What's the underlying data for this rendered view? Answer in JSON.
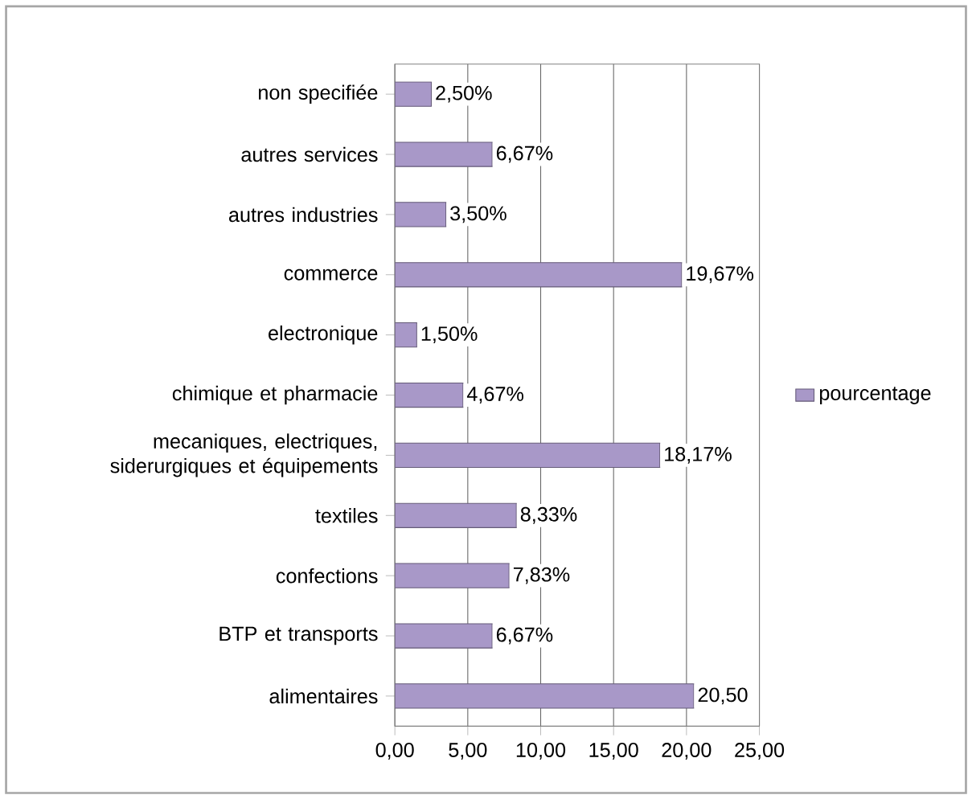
{
  "chart_data": {
    "type": "bar",
    "orientation": "horizontal",
    "categories": [
      "non specifiée",
      "autres services",
      "autres industries",
      "commerce",
      "electronique",
      "chimique et pharmacie",
      "mecaniques, electriques, siderurgiques et équipements",
      "textiles",
      "confections",
      "BTP et transports",
      "alimentaires"
    ],
    "series": [
      {
        "name": "pourcentage",
        "color": "#a898c8",
        "values": [
          2.5,
          6.67,
          3.5,
          19.67,
          1.5,
          4.67,
          18.17,
          8.33,
          7.83,
          6.67,
          20.5
        ],
        "value_labels": [
          "2,50%",
          "6,67%",
          "3,50%",
          "19,67%",
          "1,50%",
          "4,67%",
          "18,17%",
          "8,33%",
          "7,83%",
          "6,67%",
          "20,50"
        ]
      }
    ],
    "xlim": [
      0,
      25
    ],
    "xticks": [
      {
        "value": 0,
        "label": "0,00"
      },
      {
        "value": 5,
        "label": "5,00"
      },
      {
        "value": 10,
        "label": "10,00"
      },
      {
        "value": 15,
        "label": "15,00"
      },
      {
        "value": 20,
        "label": "20,00"
      },
      {
        "value": 25,
        "label": "25,00"
      }
    ],
    "grid": "x",
    "legend": "right"
  }
}
